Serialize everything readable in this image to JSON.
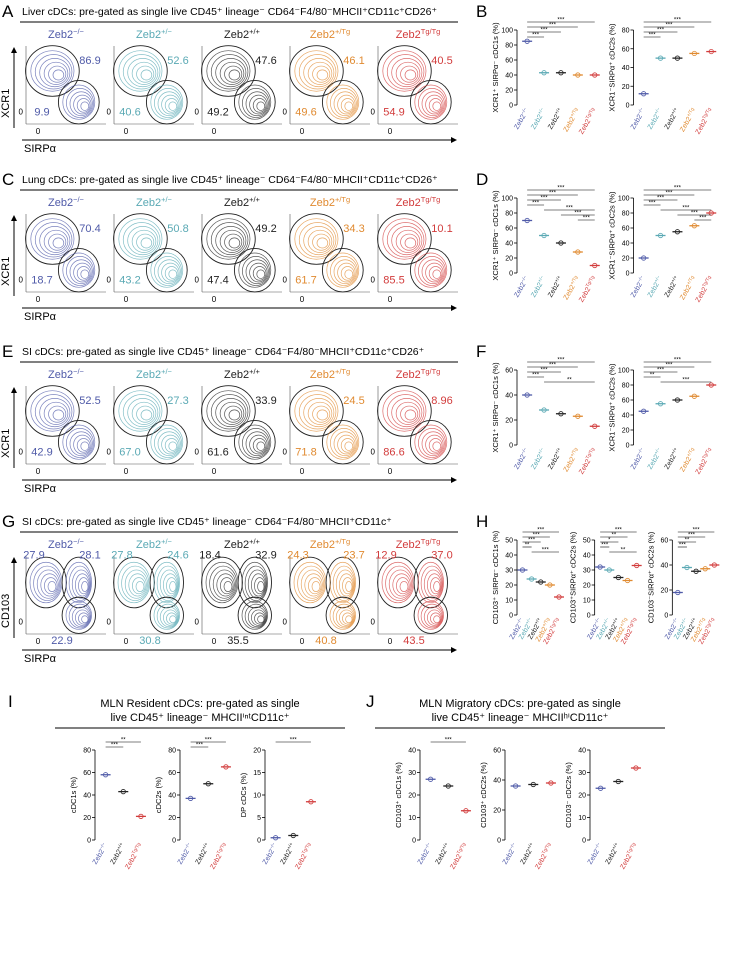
{
  "genotypes": [
    {
      "base": "Zeb2",
      "sup": "−/−",
      "color": "#4f5aa8"
    },
    {
      "base": "Zeb2",
      "sup": "+/−",
      "color": "#5aa9b4"
    },
    {
      "base": "Zeb2",
      "sup": "+/+",
      "color": "#222222"
    },
    {
      "base": "Zeb2",
      "sup": "+/Tg",
      "color": "#e08a30"
    },
    {
      "base": "Zeb2",
      "sup": "Tg/Tg",
      "color": "#d23c3c"
    }
  ],
  "flow_rows": [
    {
      "letter": "A",
      "title": "Liver cDCs: pre-gated as single live CD45⁺ lineage⁻ CD64⁻F4/80⁻MHCII⁺CD11c⁺CD26⁺",
      "y_label": "XCR1",
      "x_label": "SIRPα",
      "zero": "0",
      "gates": [
        [
          "86.9",
          "9.9"
        ],
        [
          "52.6",
          "40.6"
        ],
        [
          "47.6",
          "49.2"
        ],
        [
          "46.1",
          "49.6"
        ],
        [
          "40.5",
          "54.9"
        ]
      ]
    },
    {
      "letter": "C",
      "title": "Lung cDCs: pre-gated as single live CD45⁺ lineage⁻ CD64⁻F4/80⁻MHCII⁺CD11c⁺CD26⁺",
      "y_label": "XCR1",
      "x_label": "SIRPα",
      "zero": "0",
      "gates": [
        [
          "70.4",
          "18.7"
        ],
        [
          "50.8",
          "43.2"
        ],
        [
          "49.2",
          "47.4"
        ],
        [
          "34.3",
          "61.7"
        ],
        [
          "10.1",
          "85.5"
        ]
      ]
    },
    {
      "letter": "E",
      "title": "SI cDCs: pre-gated as single live CD45⁺ lineage⁻ CD64⁻F4/80⁻MHCII⁺CD11c⁺CD26⁺",
      "y_label": "XCR1",
      "x_label": "SIRPα",
      "zero": "0",
      "gates": [
        [
          "52.5",
          "42.9"
        ],
        [
          "27.3",
          "67.0"
        ],
        [
          "33.9",
          "61.6"
        ],
        [
          "24.5",
          "71.8"
        ],
        [
          "8.96",
          "86.6"
        ]
      ]
    },
    {
      "letter": "G",
      "title": "SI cDCs: pre-gated as single live CD45⁺ lineage⁻ CD64⁻F4/80⁻MHCII⁺CD11c⁺",
      "y_label": "CD103",
      "x_label": "SIRPα",
      "zero": "0",
      "gates": [
        [
          "27.9",
          "28.1",
          "22.9"
        ],
        [
          "27.8",
          "24.6",
          "30.8"
        ],
        [
          "18.4",
          "32.9",
          "35.5"
        ],
        [
          "24.3",
          "23.7",
          "40.8"
        ],
        [
          "12.9",
          "37.0",
          "43.5"
        ]
      ]
    }
  ],
  "dot_panels": [
    {
      "letter": "B",
      "categories": [
        {
          "base": "Zeb2",
          "sup": "−/−",
          "color": "#4f5aa8"
        },
        {
          "base": "Zeb2",
          "sup": "+/−",
          "color": "#5aa9b4"
        },
        {
          "base": "Zeb2",
          "sup": "+/+",
          "color": "#222222"
        },
        {
          "base": "Zeb2",
          "sup": "+/Tg",
          "color": "#e08a30"
        },
        {
          "base": "Zeb2",
          "sup": "Tg/Tg",
          "color": "#d23c3c"
        }
      ],
      "plots": [
        {
          "y_label": "XCR1⁺ SIRPα⁻ cDC1s (%)",
          "ylim": [
            0,
            100
          ],
          "yticks": [
            0,
            20,
            40,
            60,
            80,
            100
          ],
          "means": [
            85,
            43,
            43,
            40,
            40
          ],
          "sig": [
            "***",
            "***",
            "***",
            "***"
          ]
        },
        {
          "y_label": "XCR1⁻SIRPα⁺ cDC2s (%)",
          "ylim": [
            0,
            80
          ],
          "yticks": [
            0,
            20,
            40,
            60,
            80
          ],
          "means": [
            12,
            50,
            50,
            55,
            57
          ],
          "sig": [
            "***",
            "***",
            "***",
            "***"
          ]
        }
      ]
    },
    {
      "letter": "D",
      "categories": [
        {
          "base": "Zeb2",
          "sup": "−/−",
          "color": "#4f5aa8"
        },
        {
          "base": "Zeb2",
          "sup": "+/−",
          "color": "#5aa9b4"
        },
        {
          "base": "Zeb2",
          "sup": "+/+",
          "color": "#222222"
        },
        {
          "base": "Zeb2",
          "sup": "+/Tg",
          "color": "#e08a30"
        },
        {
          "base": "Zeb2",
          "sup": "Tg/Tg",
          "color": "#d23c3c"
        }
      ],
      "plots": [
        {
          "y_label": "XCR1⁺ SIRPα⁻ cDC1s (%)",
          "ylim": [
            0,
            100
          ],
          "yticks": [
            0,
            20,
            40,
            60,
            80,
            100
          ],
          "means": [
            70,
            50,
            40,
            28,
            10
          ],
          "sig": [
            "***",
            "***",
            "***",
            "***",
            "***",
            "***",
            "***"
          ]
        },
        {
          "y_label": "XCR1⁻SIRPα⁺ cDC2s (%)",
          "ylim": [
            0,
            100
          ],
          "yticks": [
            0,
            20,
            40,
            60,
            80,
            100
          ],
          "means": [
            20,
            50,
            55,
            63,
            80
          ],
          "sig": [
            "***",
            "***",
            "***",
            "***",
            "***",
            "***",
            "***"
          ]
        }
      ]
    },
    {
      "letter": "F",
      "categories": [
        {
          "base": "Zeb2",
          "sup": "−/−",
          "color": "#4f5aa8"
        },
        {
          "base": "Zeb2",
          "sup": "+/−",
          "color": "#5aa9b4"
        },
        {
          "base": "Zeb2",
          "sup": "+/+",
          "color": "#222222"
        },
        {
          "base": "Zeb2",
          "sup": "+/Tg",
          "color": "#e08a30"
        },
        {
          "base": "Zeb2",
          "sup": "Tg/Tg",
          "color": "#d23c3c"
        }
      ],
      "plots": [
        {
          "y_label": "XCR1⁺ SIRPα⁻ cDC1s (%)",
          "ylim": [
            0,
            60
          ],
          "yticks": [
            0,
            20,
            40,
            60
          ],
          "means": [
            40,
            28,
            25,
            23,
            15
          ],
          "sig": [
            "***",
            "***",
            "***",
            "***",
            "**"
          ]
        },
        {
          "y_label": "XCR1⁻SIRPα⁺ cDC2s (%)",
          "ylim": [
            0,
            100
          ],
          "yticks": [
            0,
            20,
            40,
            60,
            80,
            100
          ],
          "means": [
            45,
            55,
            60,
            65,
            80
          ],
          "sig": [
            "***",
            "***",
            "***",
            "**",
            "***"
          ]
        }
      ]
    },
    {
      "letter": "H",
      "categories": [
        {
          "base": "Zeb2",
          "sup": "−/−",
          "color": "#4f5aa8"
        },
        {
          "base": "Zeb2",
          "sup": "+/−",
          "color": "#5aa9b4"
        },
        {
          "base": "Zeb2",
          "sup": "+/+",
          "color": "#222222"
        },
        {
          "base": "Zeb2",
          "sup": "+/Tg",
          "color": "#e08a30"
        },
        {
          "base": "Zeb2",
          "sup": "Tg/Tg",
          "color": "#d23c3c"
        }
      ],
      "plots": [
        {
          "y_label": "CD103⁺ SIRPα⁻ cDC1s (%)",
          "ylim": [
            0,
            50
          ],
          "yticks": [
            0,
            10,
            20,
            30,
            40,
            50
          ],
          "means": [
            30,
            24,
            22,
            20,
            12
          ],
          "sig": [
            "***",
            "***",
            "***",
            "**",
            "***"
          ]
        },
        {
          "y_label": "CD103⁺SIRPα⁺ cDC2s (%)",
          "ylim": [
            0,
            50
          ],
          "yticks": [
            0,
            10,
            20,
            30,
            40,
            50
          ],
          "means": [
            32,
            30,
            25,
            23,
            33
          ],
          "sig": [
            "***",
            "**",
            "*",
            "***",
            "**"
          ]
        },
        {
          "y_label": "CD103⁻SIRPα⁺ cDC2s (%)",
          "ylim": [
            0,
            60
          ],
          "yticks": [
            0,
            20,
            40,
            60
          ],
          "means": [
            18,
            38,
            35,
            37,
            40
          ],
          "sig": [
            "***",
            "***",
            "**",
            "***"
          ]
        }
      ]
    },
    {
      "letter": "I",
      "title": [
        "MLN Resident cDCs: pre-gated as single",
        "live CD45⁺ lineage⁻ MHCIIⁱⁿᵗCD11c⁺"
      ],
      "categories": [
        {
          "base": "Zeb2",
          "sup": "−/−",
          "color": "#4f5aa8"
        },
        {
          "base": "Zeb2",
          "sup": "+/+",
          "color": "#222222"
        },
        {
          "base": "Zeb2",
          "sup": "Tg/Tg",
          "color": "#d23c3c"
        }
      ],
      "plots": [
        {
          "y_label": "cDC1s (%)",
          "ylim": [
            0,
            80
          ],
          "yticks": [
            0,
            20,
            40,
            60,
            80
          ],
          "means": [
            58,
            43,
            21
          ],
          "sig": [
            "**",
            "***"
          ]
        },
        {
          "y_label": "cDC2s (%)",
          "ylim": [
            0,
            80
          ],
          "yticks": [
            0,
            20,
            40,
            60,
            80
          ],
          "means": [
            37,
            50,
            65
          ],
          "sig": [
            "***",
            "***"
          ]
        },
        {
          "y_label": "DP cDCs (%)",
          "ylim": [
            0,
            20
          ],
          "yticks": [
            0,
            5,
            10,
            15,
            20
          ],
          "means": [
            0.5,
            1,
            8.5
          ],
          "sig": [
            "***"
          ]
        }
      ]
    },
    {
      "letter": "J",
      "title": [
        "MLN Migratory cDCs: pre-gated as single",
        "live CD45⁺ lineage⁻ MHCIIʰⁱCD11c⁺"
      ],
      "categories": [
        {
          "base": "Zeb2",
          "sup": "−/−",
          "color": "#4f5aa8"
        },
        {
          "base": "Zeb2",
          "sup": "+/+",
          "color": "#222222"
        },
        {
          "base": "Zeb2",
          "sup": "Tg/Tg",
          "color": "#d23c3c"
        }
      ],
      "plots": [
        {
          "y_label": "CD103⁺ cDC1s (%)",
          "ylim": [
            0,
            40
          ],
          "yticks": [
            0,
            10,
            20,
            30,
            40
          ],
          "means": [
            27,
            24,
            13
          ],
          "sig": [
            "***"
          ]
        },
        {
          "y_label": "CD103⁺ cDC2s (%)",
          "ylim": [
            0,
            60
          ],
          "yticks": [
            0,
            20,
            40,
            60
          ],
          "means": [
            36,
            37,
            38
          ],
          "sig": []
        },
        {
          "y_label": "CD103⁻ cDC2s (%)",
          "ylim": [
            0,
            40
          ],
          "yticks": [
            0,
            10,
            20,
            30,
            40
          ],
          "means": [
            23,
            26,
            32
          ],
          "sig": []
        }
      ]
    }
  ]
}
